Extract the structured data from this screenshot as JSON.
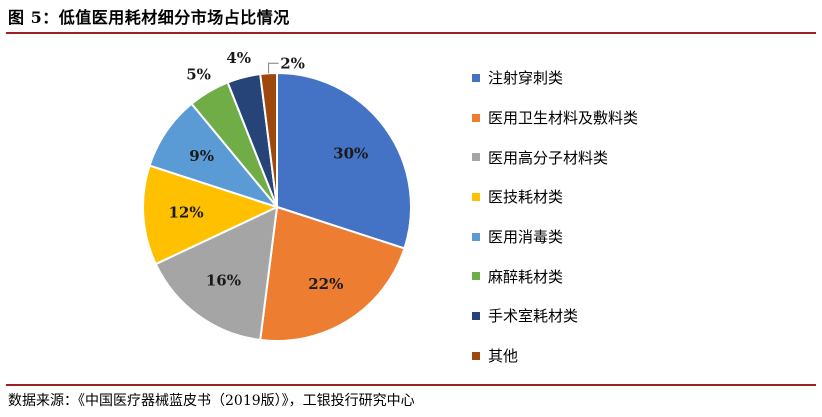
{
  "title": "图 5：低值医用耗材细分市场占比情况",
  "source": "数据来源：《中国医疗器械蓝皮书（2019版）》，工银投行研究中心",
  "chart_data": {
    "type": "pie",
    "start_angle_deg": 0,
    "direction": "clockwise",
    "legend_position": "right",
    "slices": [
      {
        "label": "注射穿刺类",
        "value": 30,
        "display": "30%",
        "color": "#4472c4"
      },
      {
        "label": "医用卫生材料及敷料类",
        "value": 22,
        "display": "22%",
        "color": "#ed7d31"
      },
      {
        "label": "医用高分子材料类",
        "value": 16,
        "display": "16%",
        "color": "#a5a5a5"
      },
      {
        "label": "医技耗材类",
        "value": 12,
        "display": "12%",
        "color": "#ffc000"
      },
      {
        "label": "医用消毒类",
        "value": 9,
        "display": "9%",
        "color": "#5b9bd5"
      },
      {
        "label": "麻醉耗材类",
        "value": 5,
        "display": "5%",
        "color": "#70ad47"
      },
      {
        "label": "手术室耗材类",
        "value": 4,
        "display": "4%",
        "color": "#264478"
      },
      {
        "label": "其他",
        "value": 2,
        "display": "2%",
        "color": "#9e480e"
      }
    ]
  }
}
